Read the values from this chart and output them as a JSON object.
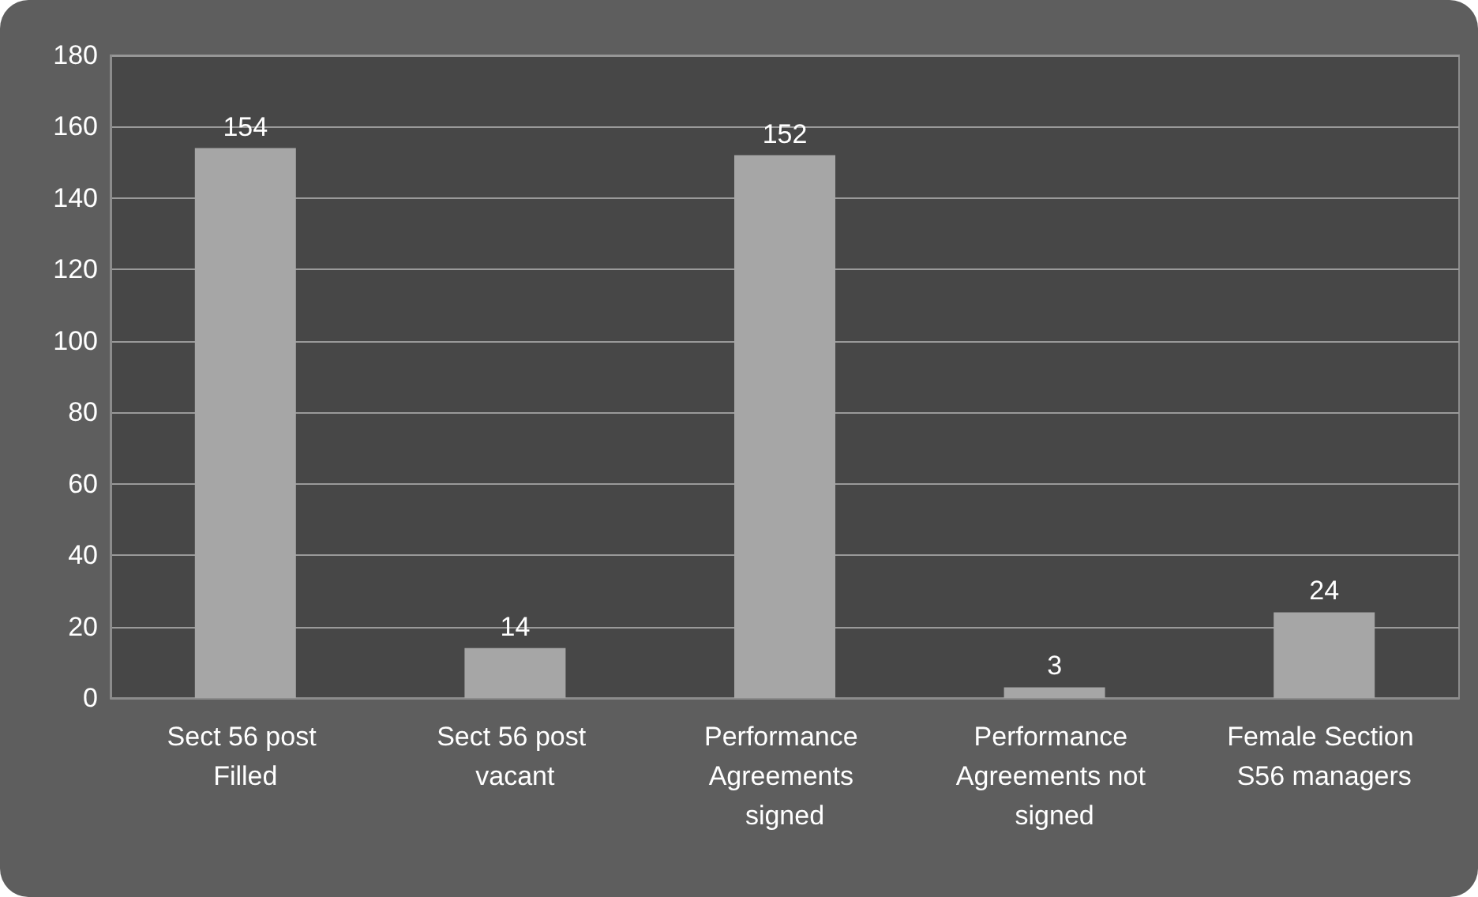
{
  "chart_data": {
    "type": "bar",
    "categories": [
      "Sect 56 post Filled",
      "Sect 56 post vacant",
      "Performance Agreements signed",
      "Performance Agreements not signed",
      "Female Section S56 managers"
    ],
    "values": [
      154,
      14,
      152,
      3,
      24
    ],
    "color": "#a6a6a6",
    "ylim": [
      0,
      180
    ],
    "yticks": [
      0,
      20,
      40,
      60,
      80,
      100,
      120,
      140,
      160,
      180
    ],
    "grid": "y",
    "data_labels": true
  }
}
